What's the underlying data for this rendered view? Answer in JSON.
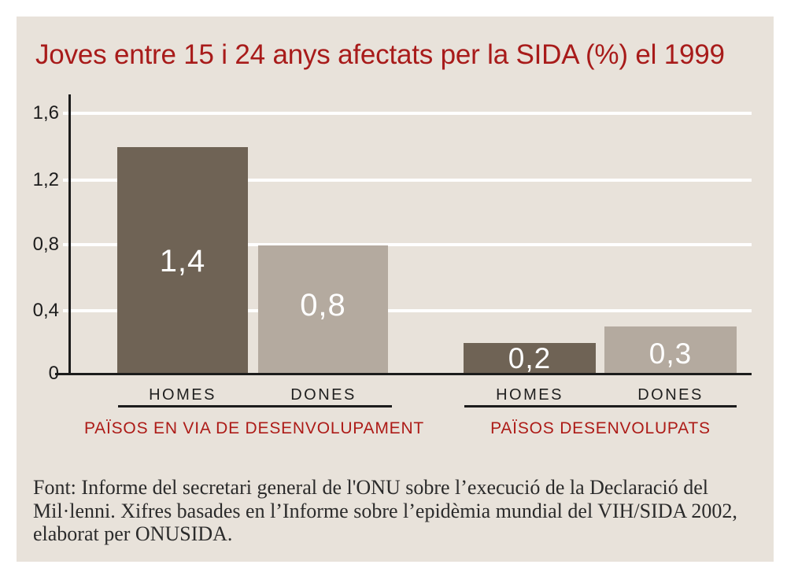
{
  "title": "Joves entre 15 i 24 anys afectats per la SIDA (%) el 1999",
  "colors": {
    "title_red": "#a81b1a",
    "caption_red": "#ad1b17",
    "bar_homes": "#6f6355",
    "bar_dones": "#b4aa9f",
    "panel_background": "#e8e2da"
  },
  "chart_data": {
    "type": "bar",
    "title": "Joves entre 15 i 24 anys afectats per la SIDA (%) el 1999",
    "unit": "%",
    "ylim": [
      0,
      1.6
    ],
    "grid": "horizontal white lines at each tick",
    "legend": "none",
    "yticks": [
      {
        "value": 1.6,
        "label": "1,6"
      },
      {
        "value": 1.2,
        "label": "1,2"
      },
      {
        "value": 0.8,
        "label": "0,8"
      },
      {
        "value": 0.4,
        "label": "0,4"
      },
      {
        "value": 0.0,
        "label": "0"
      }
    ],
    "groups": [
      {
        "label": "PAÏSOS EN VIA DE DESENVOLUPAMENT",
        "bars": [
          {
            "category": "HOMES",
            "value": 1.4,
            "value_label": "1,4"
          },
          {
            "category": "DONES",
            "value": 0.8,
            "value_label": "0,8"
          }
        ]
      },
      {
        "label": "PAÏSOS DESENVOLUPATS",
        "bars": [
          {
            "category": "HOMES",
            "value": 0.2,
            "value_label": "0,2"
          },
          {
            "category": "DONES",
            "value": 0.3,
            "value_label": "0,3"
          }
        ]
      }
    ]
  },
  "footer": {
    "lines": [
      "Font: Informe del secretari general de l'ONU sobre l’execució de la Declaració del",
      "Mil·lenni. Xifres basades en l’Informe sobre l’epidèmia mundial del VIH/SIDA 2002,",
      "elaborat per ONUSIDA."
    ]
  }
}
